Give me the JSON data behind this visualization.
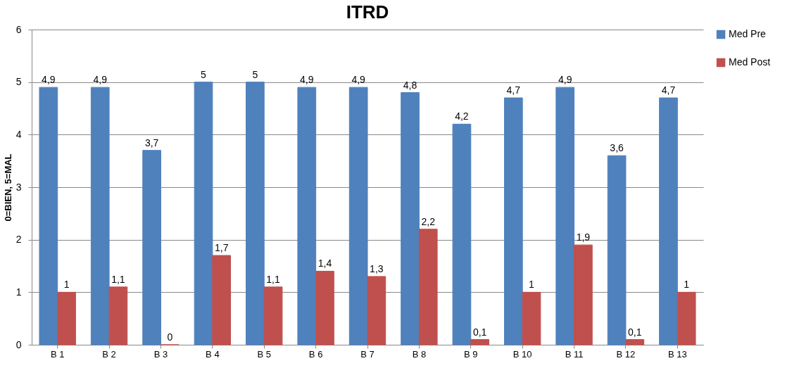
{
  "chart_data": {
    "type": "bar",
    "title": "ITRD",
    "ylabel": "0=BIEN, 5=MAL",
    "categories": [
      "B 1",
      "B 2",
      "B 3",
      "B 4",
      "B 5",
      "B 6",
      "B 7",
      "B 8",
      "B 9",
      "B 10",
      "B 11",
      "B 12",
      "B 13"
    ],
    "series": [
      {
        "name": "Med Pre",
        "color": "#4f81bd",
        "values": [
          4.9,
          4.9,
          3.7,
          5,
          5,
          4.9,
          4.9,
          4.8,
          4.2,
          4.7,
          4.9,
          3.6,
          4.7
        ],
        "value_labels": [
          "4,9",
          "4,9",
          "3,7",
          "5",
          "5",
          "4,9",
          "4,9",
          "4,8",
          "4,2",
          "4,7",
          "4,9",
          "3,6",
          "4,7"
        ]
      },
      {
        "name": "Med Post",
        "color": "#c0504d",
        "values": [
          1,
          1.1,
          0,
          1.7,
          1.1,
          1.4,
          1.3,
          2.2,
          0.1,
          1,
          1.9,
          0.1,
          1
        ],
        "value_labels": [
          "1",
          "1,1",
          "0",
          "1,7",
          "1,1",
          "1,4",
          "1,3",
          "2,2",
          "0,1",
          "1",
          "1,9",
          "0,1",
          "1"
        ]
      }
    ],
    "ylim": [
      0,
      6
    ],
    "yticks": [
      0,
      1,
      2,
      3,
      4,
      5,
      6
    ],
    "grid": "y",
    "legend": "right"
  }
}
